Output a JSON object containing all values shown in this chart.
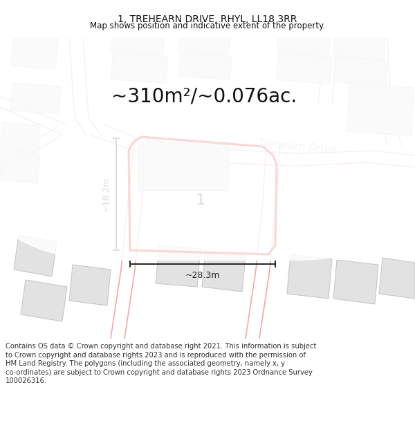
{
  "title": "1, TREHEARN DRIVE, RHYL, LL18 3RR",
  "subtitle": "Map shows position and indicative extent of the property.",
  "area_text": "~310m²/~0.076ac.",
  "street_label": "Trehearn Drive",
  "plot_label": "1",
  "dim_width": "~28.3m",
  "dim_height": "~18.2m",
  "bg_color": "#ffffff",
  "map_bg": "#f2f2f2",
  "building_fill": "#e2e2e2",
  "building_edge": "#c8c8c8",
  "plot_edge": "#cc0000",
  "dim_color": "#222222",
  "street_color": "#c0c0c0",
  "road_line_color": "#f0aaaa",
  "title_fontsize": 10,
  "subtitle_fontsize": 8.5,
  "area_fontsize": 20,
  "plot_label_fontsize": 16,
  "street_fontsize": 11,
  "dim_fontsize": 9,
  "footer_fontsize": 7.2,
  "footer_lines": [
    "Contains OS data © Crown copyright and database right 2021. This information is subject",
    "to Crown copyright and database rights 2023 and is reproduced with the permission of",
    "HM Land Registry. The polygons (including the associated geometry, namely x, y",
    "co-ordinates) are subject to Crown copyright and database rights 2023 Ordnance Survey",
    "100026316."
  ]
}
